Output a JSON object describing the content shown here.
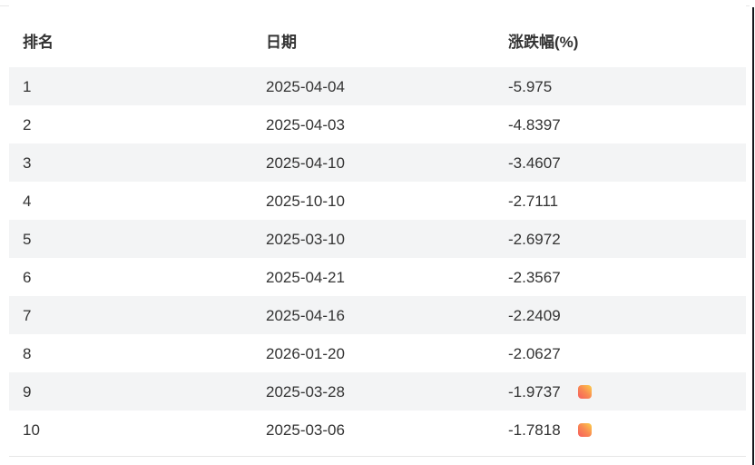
{
  "table": {
    "columns": [
      {
        "key": "rank",
        "label": "排名"
      },
      {
        "key": "date",
        "label": "日期"
      },
      {
        "key": "change",
        "label": "涨跌幅(%)"
      }
    ],
    "rows": [
      {
        "rank": "1",
        "date": "2025-04-04",
        "change": "-5.975",
        "hot": false
      },
      {
        "rank": "2",
        "date": "2025-04-03",
        "change": "-4.8397",
        "hot": false
      },
      {
        "rank": "3",
        "date": "2025-04-10",
        "change": "-3.4607",
        "hot": false
      },
      {
        "rank": "4",
        "date": "2025-10-10",
        "change": "-2.7111",
        "hot": false
      },
      {
        "rank": "5",
        "date": "2025-03-10",
        "change": "-2.6972",
        "hot": false
      },
      {
        "rank": "6",
        "date": "2025-04-21",
        "change": "-2.3567",
        "hot": false
      },
      {
        "rank": "7",
        "date": "2025-04-16",
        "change": "-2.2409",
        "hot": false
      },
      {
        "rank": "8",
        "date": "2026-01-20",
        "change": "-2.0627",
        "hot": false
      },
      {
        "rank": "9",
        "date": "2025-03-28",
        "change": "-1.9737",
        "hot": true
      },
      {
        "rank": "10",
        "date": "2025-03-06",
        "change": "-1.7818",
        "hot": true
      }
    ]
  },
  "colors": {
    "stripe": "#f3f4f5",
    "divider": "#e7e7e7",
    "text": "#333333",
    "badge_gradient_start": "#f65e5e",
    "badge_gradient_end": "#fccf49",
    "window_edge": "#16181d"
  },
  "icons": {
    "hot_badge": "hot-badge-icon"
  }
}
